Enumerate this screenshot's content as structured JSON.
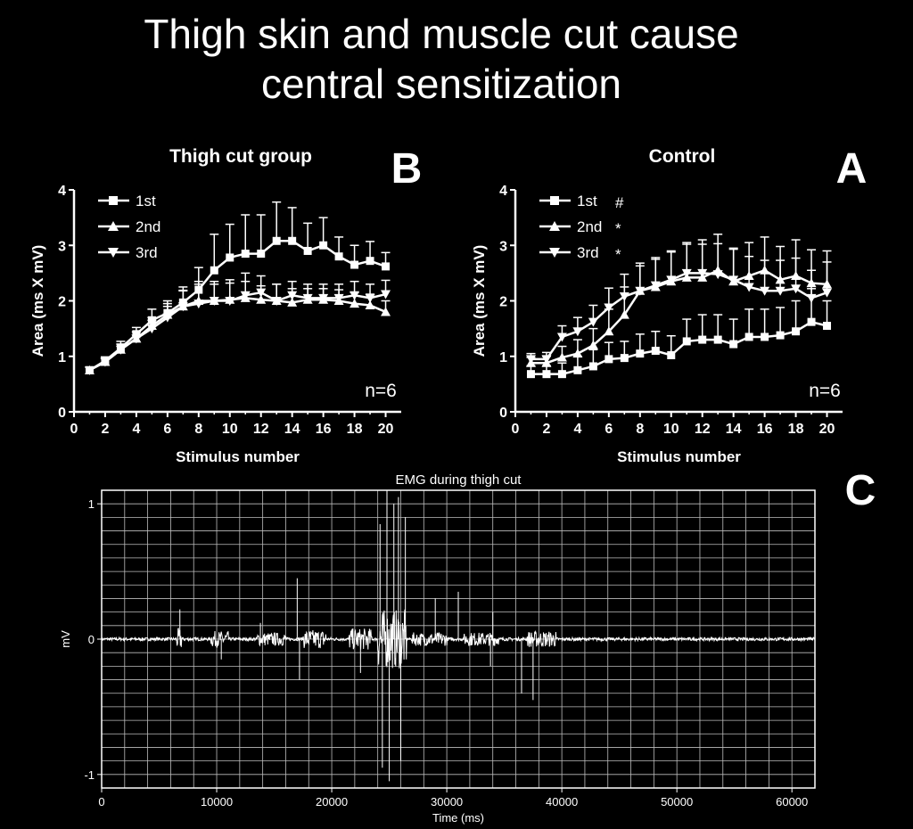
{
  "slide": {
    "title_line1": "Thigh skin and muscle cut cause",
    "title_line2": "central sensitization"
  },
  "chart_data": [
    {
      "type": "line",
      "panel_letter": "B",
      "title": "Thigh cut group",
      "xlabel": "Stimulus number",
      "ylabel": "Area (ms X mV)",
      "xlim": [
        0,
        21
      ],
      "ylim": [
        0,
        4
      ],
      "xticks": [
        "0",
        "2",
        "4",
        "6",
        "8",
        "10",
        "12",
        "14",
        "16",
        "18",
        "20"
      ],
      "yticks": [
        "0",
        "1",
        "2",
        "3",
        "4"
      ],
      "x": [
        1,
        2,
        3,
        4,
        5,
        6,
        7,
        8,
        9,
        10,
        11,
        12,
        13,
        14,
        15,
        16,
        17,
        18,
        19,
        20
      ],
      "n_label": "n=6",
      "legend_position": "top-left",
      "series": [
        {
          "name": "1st",
          "marker": "square",
          "sig": "",
          "values": [
            0.75,
            0.92,
            1.15,
            1.4,
            1.65,
            1.78,
            1.97,
            2.2,
            2.55,
            2.78,
            2.85,
            2.85,
            3.08,
            3.08,
            2.9,
            3.0,
            2.8,
            2.65,
            2.72,
            2.62
          ],
          "err": [
            0.05,
            0.07,
            0.12,
            0.12,
            0.2,
            0.22,
            0.22,
            0.4,
            0.65,
            0.6,
            0.7,
            0.7,
            0.7,
            0.6,
            0.5,
            0.5,
            0.35,
            0.35,
            0.35,
            0.25
          ]
        },
        {
          "name": "2nd",
          "marker": "triangle-up",
          "sig": "",
          "values": [
            0.75,
            0.9,
            1.12,
            1.32,
            1.55,
            1.75,
            1.9,
            2.0,
            2.0,
            2.02,
            2.05,
            2.02,
            2.0,
            1.97,
            2.02,
            2.02,
            2.0,
            1.95,
            1.92,
            1.8
          ],
          "err": [
            0.05,
            0.06,
            0.1,
            0.12,
            0.15,
            0.2,
            0.28,
            0.35,
            0.3,
            0.3,
            0.3,
            0.25,
            0.3,
            0.25,
            0.2,
            0.2,
            0.2,
            0.2,
            0.2,
            0.2
          ]
        },
        {
          "name": "3rd",
          "marker": "triangle-down",
          "sig": "",
          "values": [
            0.75,
            0.9,
            1.12,
            1.32,
            1.5,
            1.7,
            1.9,
            1.95,
            2.0,
            2.0,
            2.1,
            2.15,
            2.0,
            2.1,
            2.05,
            2.05,
            2.05,
            2.1,
            2.05,
            2.12
          ],
          "err": [
            0.05,
            0.06,
            0.1,
            0.12,
            0.15,
            0.2,
            0.35,
            0.35,
            0.35,
            0.38,
            0.4,
            0.3,
            0.3,
            0.25,
            0.25,
            0.25,
            0.25,
            0.25,
            0.25,
            0.25
          ]
        }
      ]
    },
    {
      "type": "line",
      "panel_letter": "A",
      "title": "Control",
      "xlabel": "Stimulus number",
      "ylabel": "Area (ms X mV)",
      "xlim": [
        0,
        21
      ],
      "ylim": [
        0,
        4
      ],
      "xticks": [
        "0",
        "2",
        "4",
        "6",
        "8",
        "10",
        "12",
        "14",
        "16",
        "18",
        "20"
      ],
      "yticks": [
        "0",
        "1",
        "2",
        "3",
        "4"
      ],
      "x": [
        1,
        2,
        3,
        4,
        5,
        6,
        7,
        8,
        9,
        10,
        11,
        12,
        13,
        14,
        15,
        16,
        17,
        18,
        19,
        20
      ],
      "n_label": "n=6",
      "legend_position": "top-left",
      "series": [
        {
          "name": "1st",
          "marker": "square",
          "sig": "#",
          "values": [
            0.68,
            0.68,
            0.68,
            0.75,
            0.82,
            0.95,
            0.97,
            1.05,
            1.1,
            1.02,
            1.27,
            1.3,
            1.3,
            1.22,
            1.35,
            1.35,
            1.38,
            1.45,
            1.62,
            1.55
          ],
          "err": [
            0.15,
            0.15,
            0.2,
            0.25,
            0.3,
            0.3,
            0.3,
            0.35,
            0.35,
            0.35,
            0.4,
            0.45,
            0.45,
            0.45,
            0.5,
            0.5,
            0.5,
            0.55,
            0.6,
            0.45
          ]
        },
        {
          "name": "2nd",
          "marker": "triangle-up",
          "sig": "*",
          "values": [
            0.88,
            0.88,
            0.98,
            1.05,
            1.2,
            1.45,
            1.75,
            2.18,
            2.25,
            2.35,
            2.42,
            2.42,
            2.55,
            2.35,
            2.45,
            2.55,
            2.38,
            2.45,
            2.32,
            2.3
          ],
          "err": [
            0.1,
            0.12,
            0.2,
            0.25,
            0.3,
            0.4,
            0.5,
            0.5,
            0.5,
            0.55,
            0.6,
            0.6,
            0.65,
            0.6,
            0.6,
            0.6,
            0.6,
            0.65,
            0.6,
            0.6
          ]
        },
        {
          "name": "3rd",
          "marker": "triangle-down",
          "sig": "*",
          "values": [
            0.95,
            0.95,
            1.35,
            1.45,
            1.62,
            1.88,
            2.08,
            2.18,
            2.28,
            2.38,
            2.5,
            2.5,
            2.48,
            2.38,
            2.25,
            2.18,
            2.18,
            2.22,
            2.05,
            2.15
          ],
          "err": [
            0.1,
            0.12,
            0.2,
            0.25,
            0.3,
            0.35,
            0.4,
            0.45,
            0.5,
            0.5,
            0.55,
            0.6,
            0.55,
            0.55,
            0.55,
            0.55,
            0.55,
            0.55,
            0.5,
            0.55
          ]
        }
      ]
    },
    {
      "type": "line",
      "panel_letter": "C",
      "title": "EMG during thigh cut",
      "xlabel": "Time (ms)",
      "ylabel": "mV",
      "xlim": [
        0,
        62000
      ],
      "ylim": [
        -1.1,
        1.1
      ],
      "xticks": [
        "0",
        "10000",
        "20000",
        "30000",
        "40000",
        "50000",
        "60000"
      ],
      "yticks": [
        "1",
        "0",
        "-1"
      ],
      "grid": true,
      "series": [
        {
          "name": "",
          "trace": "dense EMG trace, baseline noise ~0.01 mV, bursts near 10000, 14000-16000, 21000-26000, 30000-34000, 37000-40000 ms",
          "bursts": [
            {
              "start": 6500,
              "end": 7000,
              "amp": 0.08
            },
            {
              "start": 9500,
              "end": 11000,
              "amp": 0.06
            },
            {
              "start": 13500,
              "end": 16000,
              "amp": 0.05
            },
            {
              "start": 17500,
              "end": 19500,
              "amp": 0.07
            },
            {
              "start": 21500,
              "end": 23500,
              "amp": 0.08
            },
            {
              "start": 24000,
              "end": 26500,
              "amp": 0.22
            },
            {
              "start": 27000,
              "end": 30000,
              "amp": 0.05
            },
            {
              "start": 31500,
              "end": 34500,
              "amp": 0.05
            },
            {
              "start": 37000,
              "end": 39500,
              "amp": 0.06
            }
          ],
          "spikes": [
            {
              "x": 6800,
              "y": 0.22
            },
            {
              "x": 10400,
              "y": -0.15
            },
            {
              "x": 13800,
              "y": 0.12
            },
            {
              "x": 17000,
              "y": 0.45
            },
            {
              "x": 17200,
              "y": -0.3
            },
            {
              "x": 22500,
              "y": -0.25
            },
            {
              "x": 24200,
              "y": 0.85
            },
            {
              "x": 24400,
              "y": -0.95
            },
            {
              "x": 24800,
              "y": 1.1
            },
            {
              "x": 25000,
              "y": -1.05
            },
            {
              "x": 25400,
              "y": 1.0
            },
            {
              "x": 25800,
              "y": 1.05
            },
            {
              "x": 26000,
              "y": -0.9
            },
            {
              "x": 26400,
              "y": 0.9
            },
            {
              "x": 29000,
              "y": 0.3
            },
            {
              "x": 31000,
              "y": 0.35
            },
            {
              "x": 34000,
              "y": 0.2
            },
            {
              "x": 36500,
              "y": -0.4
            },
            {
              "x": 37500,
              "y": -0.45
            },
            {
              "x": 33800,
              "y": -0.2
            }
          ]
        }
      ]
    }
  ]
}
